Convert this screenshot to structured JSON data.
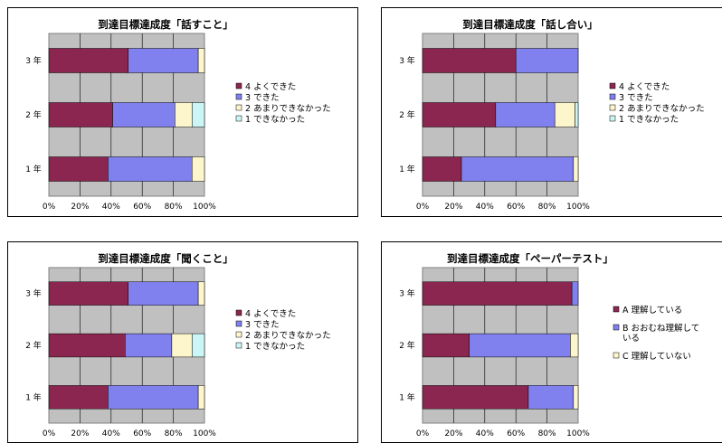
{
  "colors": {
    "c4": "#8b2650",
    "c3": "#8080ee",
    "c2": "#fdf6cc",
    "c1": "#ccf6f6",
    "plot_bg": "#c0c0c0"
  },
  "chart_data": [
    {
      "type": "bar",
      "orientation": "horizontal",
      "stacked": true,
      "title": "到達目標達成度「話すこと」",
      "categories": [
        "3 年",
        "2 年",
        "1 年"
      ],
      "xticks": [
        "0%",
        "20%",
        "40%",
        "60%",
        "80%",
        "100%"
      ],
      "xlim": [
        0,
        100
      ],
      "legend_position": "right",
      "series": [
        {
          "name": "4  よくできた",
          "color": "c4",
          "values": [
            51,
            41,
            38
          ]
        },
        {
          "name": "3  できた",
          "color": "c3",
          "values": [
            45,
            40,
            54
          ]
        },
        {
          "name": "2  あまりできなかった",
          "color": "c2",
          "values": [
            4,
            11,
            8
          ]
        },
        {
          "name": "1  できなかった",
          "color": "c1",
          "values": [
            0,
            8,
            0
          ]
        }
      ]
    },
    {
      "type": "bar",
      "orientation": "horizontal",
      "stacked": true,
      "title": "到達目標達成度「話し合い」",
      "categories": [
        "3 年",
        "2 年",
        "1 年"
      ],
      "xticks": [
        "0%",
        "20%",
        "40%",
        "60%",
        "80%",
        "100%"
      ],
      "xlim": [
        0,
        100
      ],
      "legend_position": "right",
      "series": [
        {
          "name": "4  よくできた",
          "color": "c4",
          "values": [
            60,
            47,
            25
          ]
        },
        {
          "name": "3  できた",
          "color": "c3",
          "values": [
            40,
            38,
            72
          ]
        },
        {
          "name": "2  あまりできなかった",
          "color": "c2",
          "values": [
            0,
            13,
            3
          ]
        },
        {
          "name": "1  できなかった",
          "color": "c1",
          "values": [
            0,
            2,
            0
          ]
        }
      ]
    },
    {
      "type": "bar",
      "orientation": "horizontal",
      "stacked": true,
      "title": "到達目標達成度「聞くこと」",
      "categories": [
        "3 年",
        "2 年",
        "1 年"
      ],
      "xticks": [
        "0%",
        "20%",
        "40%",
        "60%",
        "80%",
        "100%"
      ],
      "xlim": [
        0,
        100
      ],
      "legend_position": "right",
      "series": [
        {
          "name": "4  よくできた",
          "color": "c4",
          "values": [
            51,
            49,
            38
          ]
        },
        {
          "name": "3  できた",
          "color": "c3",
          "values": [
            45,
            30,
            58
          ]
        },
        {
          "name": "2  あまりできなかった",
          "color": "c2",
          "values": [
            4,
            13,
            4
          ]
        },
        {
          "name": "1  できなかった",
          "color": "c1",
          "values": [
            0,
            8,
            0
          ]
        }
      ]
    },
    {
      "type": "bar",
      "orientation": "horizontal",
      "stacked": true,
      "title": "到達目標達成度「ペーパーテスト」",
      "categories": [
        "3 年",
        "2 年",
        "1 年"
      ],
      "xticks": [
        "0%",
        "20%",
        "40%",
        "60%",
        "80%",
        "100%"
      ],
      "xlim": [
        0,
        100
      ],
      "legend_position": "right",
      "series": [
        {
          "name": "A  理解している",
          "color": "c4",
          "values": [
            96,
            30,
            68
          ]
        },
        {
          "name": "B  おおむね理解している",
          "color": "c3",
          "values": [
            4,
            65,
            29
          ]
        },
        {
          "name": "C  理解していない",
          "color": "c2",
          "values": [
            0,
            5,
            3
          ]
        }
      ]
    }
  ]
}
